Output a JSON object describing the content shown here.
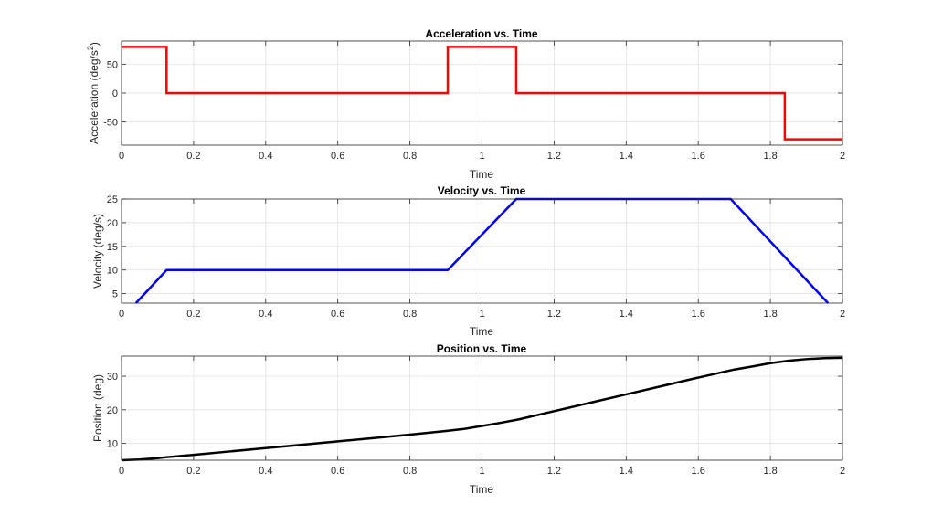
{
  "chart_data": [
    {
      "type": "line",
      "title": "Acceleration vs. Time",
      "xlabel": "Time",
      "ylabel": "Acceleration (deg/s",
      "ylabel_sup": "2",
      "ylabel_close": ")",
      "xlim": [
        0,
        2
      ],
      "ylim": [
        -90,
        90
      ],
      "xticks": [
        0,
        0.2,
        0.4,
        0.6,
        0.8,
        1,
        1.2,
        1.4,
        1.6,
        1.8,
        2
      ],
      "xtick_labels": [
        "0",
        "0.2",
        "0.4",
        "0.6",
        "0.8",
        "1",
        "1.2",
        "1.4",
        "1.6",
        "1.8",
        "2"
      ],
      "yticks": [
        -50,
        0,
        50
      ],
      "ytick_labels": [
        "-50",
        "0",
        "50"
      ],
      "grid": true,
      "color": "#ff0000",
      "series": [
        {
          "x": [
            0,
            0.125,
            0.125,
            0.905,
            0.905,
            1.095,
            1.095,
            1.84,
            1.84,
            2
          ],
          "y": [
            80,
            80,
            0,
            0,
            80,
            80,
            0,
            0,
            -80,
            -80
          ]
        }
      ]
    },
    {
      "type": "line",
      "title": "Velocity vs. Time",
      "xlabel": "Time",
      "ylabel": "Velocity (deg/s)",
      "xlim": [
        0,
        2
      ],
      "ylim": [
        3,
        25
      ],
      "xticks": [
        0,
        0.2,
        0.4,
        0.6,
        0.8,
        1,
        1.2,
        1.4,
        1.6,
        1.8,
        2
      ],
      "xtick_labels": [
        "0",
        "0.2",
        "0.4",
        "0.6",
        "0.8",
        "1",
        "1.2",
        "1.4",
        "1.6",
        "1.8",
        "2"
      ],
      "yticks": [
        5,
        10,
        15,
        20,
        25
      ],
      "ytick_labels": [
        "5",
        "10",
        "15",
        "20",
        "25"
      ],
      "grid": true,
      "color": "#0000ff",
      "series": [
        {
          "x": [
            0.04,
            0.125,
            0.905,
            1.095,
            1.69,
            1.96
          ],
          "y": [
            3,
            10,
            10,
            25,
            25,
            3
          ]
        }
      ]
    },
    {
      "type": "line",
      "title": "Position vs. Time",
      "xlabel": "Time",
      "ylabel": "Position (deg)",
      "xlim": [
        0,
        2
      ],
      "ylim": [
        5,
        36
      ],
      "xticks": [
        0,
        0.2,
        0.4,
        0.6,
        0.8,
        1,
        1.2,
        1.4,
        1.6,
        1.8,
        2
      ],
      "xtick_labels": [
        "0",
        "0.2",
        "0.4",
        "0.6",
        "0.8",
        "1",
        "1.2",
        "1.4",
        "1.6",
        "1.8",
        "2"
      ],
      "yticks": [
        10,
        20,
        30
      ],
      "ytick_labels": [
        "10",
        "20",
        "30"
      ],
      "grid": true,
      "color": "#000000",
      "series": [
        {
          "x": [
            0,
            0.05,
            0.1,
            0.125,
            0.2,
            0.3,
            0.4,
            0.5,
            0.6,
            0.7,
            0.8,
            0.9,
            0.95,
            1.0,
            1.05,
            1.1,
            1.2,
            1.3,
            1.4,
            1.5,
            1.6,
            1.7,
            1.75,
            1.8,
            1.85,
            1.9,
            1.95,
            2.0
          ],
          "y": [
            5.0,
            5.2,
            5.6,
            5.9,
            6.6,
            7.6,
            8.6,
            9.6,
            10.6,
            11.6,
            12.6,
            13.7,
            14.3,
            15.2,
            16.1,
            17.1,
            19.6,
            22.1,
            24.6,
            27.1,
            29.6,
            32.0,
            32.9,
            33.9,
            34.6,
            35.1,
            35.4,
            35.5
          ]
        }
      ]
    }
  ]
}
